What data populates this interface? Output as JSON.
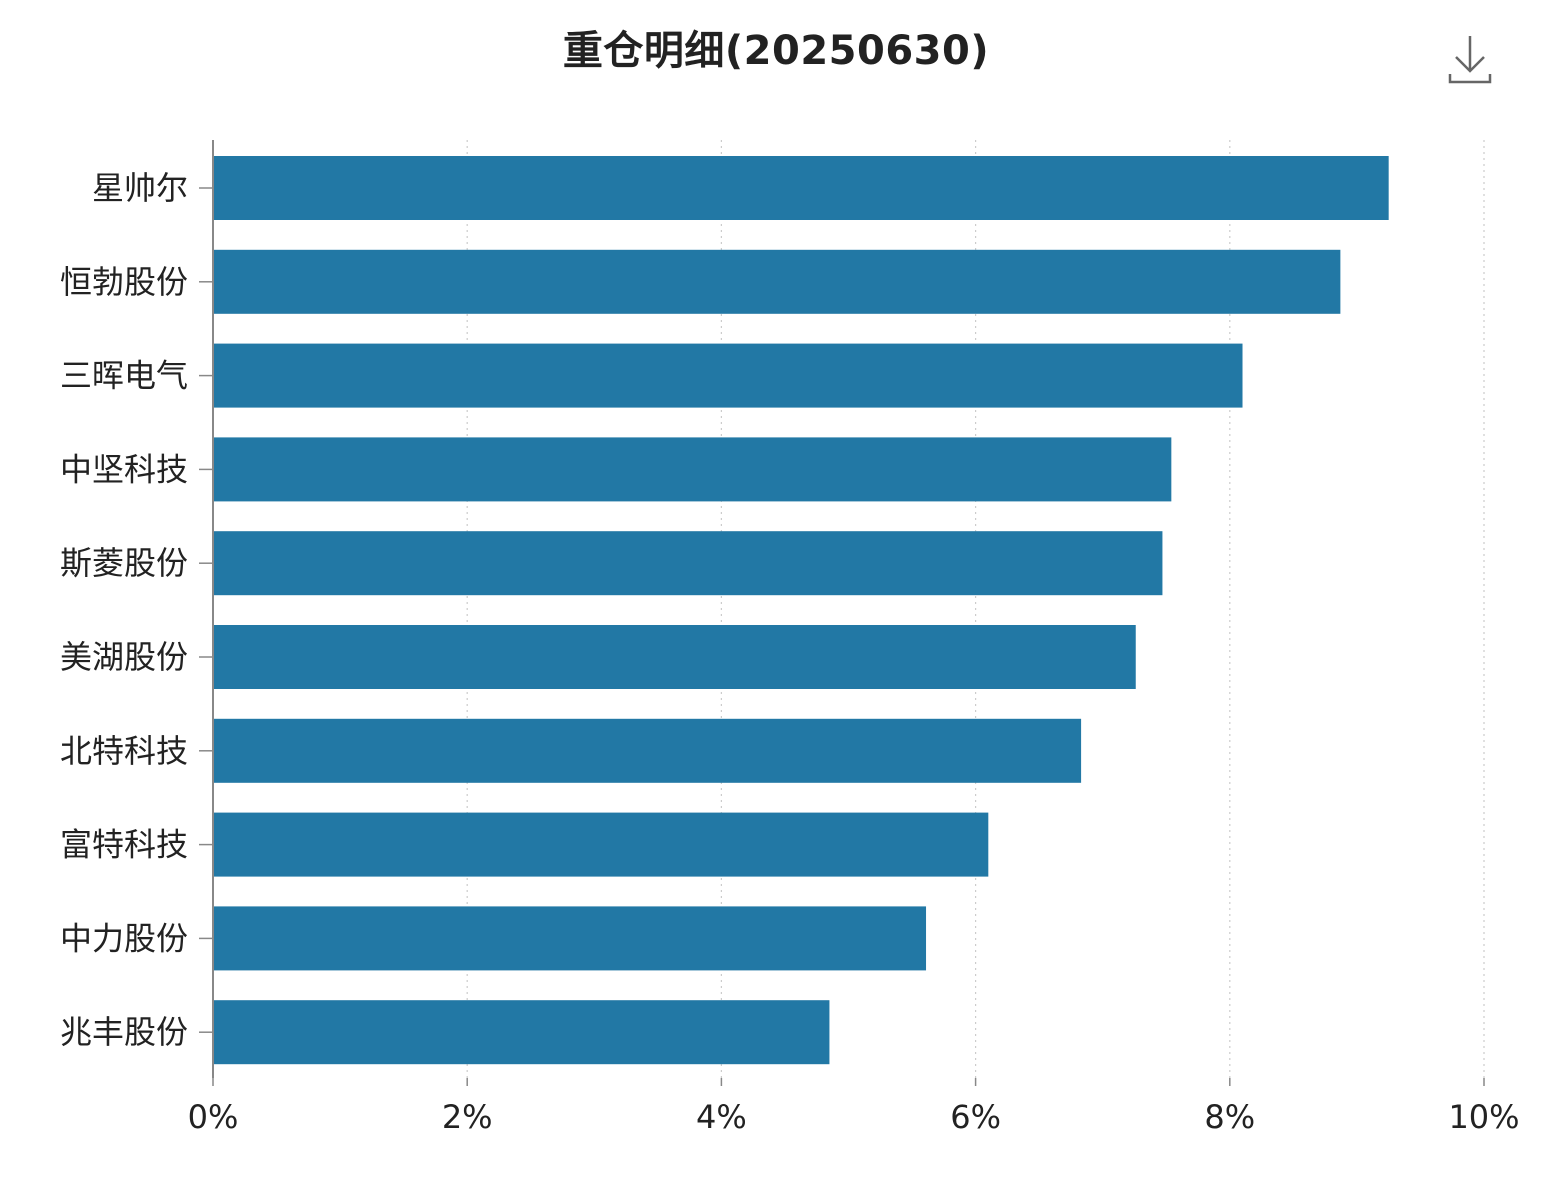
{
  "chart_data": {
    "type": "bar",
    "orientation": "horizontal",
    "title": "重仓明细(20250630)",
    "categories": [
      "星帅尔",
      "恒勃股份",
      "三晖电气",
      "中坚科技",
      "斯菱股份",
      "美湖股份",
      "北特科技",
      "富特科技",
      "中力股份",
      "兆丰股份"
    ],
    "values": [
      9.25,
      8.87,
      8.1,
      7.54,
      7.47,
      7.26,
      6.83,
      6.1,
      5.61,
      4.85
    ],
    "xlim": [
      0,
      10
    ],
    "xticks": [
      0,
      2,
      4,
      6,
      8,
      10
    ],
    "xtick_labels": [
      "0%",
      "2%",
      "4%",
      "6%",
      "8%",
      "10%"
    ],
    "grid": true,
    "bar_color": "#2278a5"
  },
  "toolbar": {
    "download_icon": "download-icon"
  }
}
